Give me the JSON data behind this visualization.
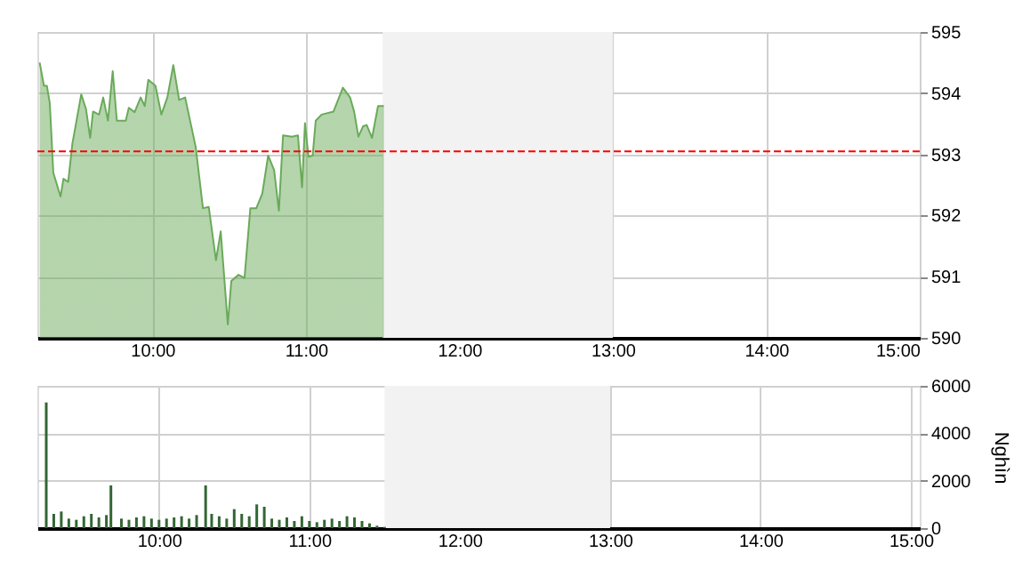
{
  "chart_data": [
    {
      "type": "area",
      "x": [
        9.265,
        9.293,
        9.312,
        9.331,
        9.354,
        9.401,
        9.42,
        9.451,
        9.478,
        9.536,
        9.567,
        9.594,
        9.613,
        9.652,
        9.679,
        9.71,
        9.741,
        9.768,
        9.826,
        9.846,
        9.884,
        9.923,
        9.95,
        9.973,
        10.02,
        10.058,
        10.097,
        10.136,
        10.174,
        10.213,
        10.282,
        10.329,
        10.367,
        10.414,
        10.445,
        10.491,
        10.514,
        10.561,
        10.6,
        10.638,
        10.677,
        10.716,
        10.754,
        10.793,
        10.824,
        10.851,
        10.909,
        10.948,
        10.975,
        10.994,
        11.017,
        11.044,
        11.064,
        11.102,
        11.18,
        11.241,
        11.288,
        11.315,
        11.342,
        11.373,
        11.396,
        11.431,
        11.47,
        11.508
      ],
      "series": [
        {
          "color": "#6aaa5a",
          "values": [
            594.5,
            594.12,
            594.12,
            593.84,
            592.7,
            592.31,
            592.6,
            592.55,
            593.17,
            593.98,
            593.74,
            593.27,
            593.7,
            593.65,
            593.93,
            593.55,
            594.36,
            593.55,
            593.55,
            593.76,
            593.69,
            593.93,
            593.79,
            594.22,
            594.12,
            593.65,
            593.93,
            594.46,
            593.89,
            593.93,
            593.12,
            592.12,
            592.14,
            591.27,
            591.74,
            590.22,
            590.93,
            591.03,
            590.98,
            592.12,
            592.12,
            592.36,
            592.98,
            592.74,
            592.08,
            593.31,
            593.29,
            593.31,
            592.46,
            593.51,
            592.96,
            592.98,
            593.55,
            593.65,
            593.7,
            594.09,
            593.93,
            593.69,
            593.29,
            593.46,
            593.48,
            593.27,
            593.79,
            593.79
          ]
        }
      ],
      "xlim": [
        9.25,
        15
      ],
      "xticks": [
        {
          "value": 10,
          "label": "10:00"
        },
        {
          "value": 11,
          "label": "11:00"
        },
        {
          "value": 12,
          "label": "12:00"
        },
        {
          "value": 13,
          "label": "13:00"
        },
        {
          "value": 14,
          "label": "14:00"
        },
        {
          "value": 15,
          "label": "15:00"
        }
      ],
      "ylim": [
        590,
        595
      ],
      "yticks": [
        590,
        591,
        592,
        593,
        594,
        595
      ],
      "ref_lines": [
        {
          "axis": "y",
          "value": 593.05,
          "color": "#ff0000",
          "line_style": "dashed"
        }
      ],
      "bands": [
        {
          "axis": "x",
          "from": 11.5,
          "to": 13,
          "color": "#f2f2f2"
        }
      ],
      "grid": true
    },
    {
      "type": "bar",
      "x": [
        9.25,
        9.3,
        9.35,
        9.4,
        9.45,
        9.5,
        9.55,
        9.6,
        9.65,
        9.68,
        9.75,
        9.8,
        9.85,
        9.9,
        9.95,
        10.0,
        10.05,
        10.1,
        10.15,
        10.2,
        10.25,
        10.31,
        10.35,
        10.4,
        10.45,
        10.5,
        10.55,
        10.6,
        10.65,
        10.7,
        10.75,
        10.8,
        10.85,
        10.9,
        10.95,
        11.0,
        11.05,
        11.1,
        11.15,
        11.2,
        11.25,
        11.3,
        11.35,
        11.4,
        11.45,
        11.5
      ],
      "series": [
        {
          "color": "#336633",
          "values": [
            5300,
            600,
            700,
            400,
            350,
            500,
            600,
            450,
            550,
            1800,
            400,
            350,
            450,
            500,
            400,
            350,
            400,
            450,
            500,
            400,
            550,
            1800,
            600,
            500,
            400,
            800,
            600,
            500,
            1000,
            900,
            400,
            350,
            450,
            300,
            500,
            300,
            250,
            350,
            400,
            300,
            500,
            450,
            300,
            200,
            100,
            50
          ]
        }
      ],
      "ylabel": "Nghìn",
      "xlim": [
        9.25,
        15
      ],
      "xticks": [
        {
          "value": 10,
          "label": "10:00"
        },
        {
          "value": 11,
          "label": "11:00"
        },
        {
          "value": 12,
          "label": "12:00"
        },
        {
          "value": 13,
          "label": "13:00"
        },
        {
          "value": 14,
          "label": "14:00"
        },
        {
          "value": 15,
          "label": "15:00"
        }
      ],
      "ylim": [
        0,
        6000
      ],
      "yticks": [
        0,
        2000,
        4000,
        6000
      ],
      "bands": [
        {
          "axis": "x",
          "from": 11.5,
          "to": 13,
          "color": "#f2f2f2"
        }
      ],
      "grid": true
    }
  ]
}
